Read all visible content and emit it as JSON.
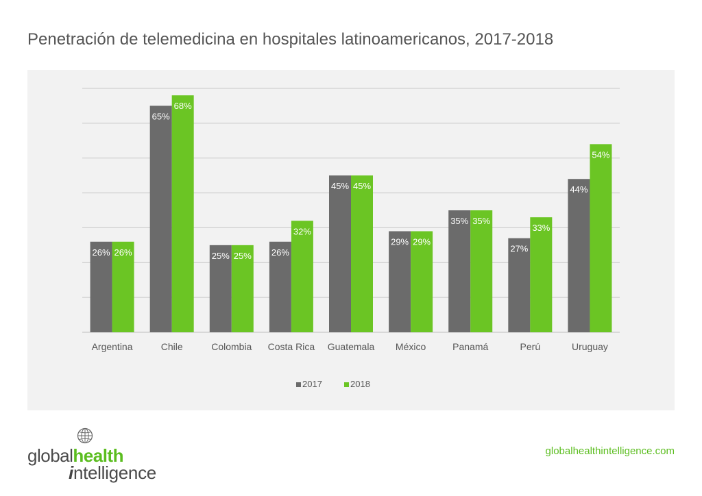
{
  "chart_data": {
    "type": "bar",
    "title": "Penetración de telemedicina en hospitales latinoamericanos, 2017-2018",
    "categories": [
      "Argentina",
      "Chile",
      "Colombia",
      "Costa Rica",
      "Guatemala",
      "México",
      "Panamá",
      "Perú",
      "Uruguay"
    ],
    "series": [
      {
        "name": "2017",
        "values": [
          26,
          65,
          25,
          26,
          45,
          29,
          35,
          27,
          44
        ],
        "labels": [
          "26%",
          "65%",
          "25%",
          "26%",
          "45%",
          "29%",
          "35%",
          "27%",
          "44%"
        ],
        "color": "#6b6b6b"
      },
      {
        "name": "2018",
        "values": [
          26,
          68,
          25,
          32,
          45,
          29,
          35,
          33,
          54
        ],
        "labels": [
          "26%",
          "68%",
          "25%",
          "32%",
          "45%",
          "29%",
          "35%",
          "33%",
          "54%"
        ],
        "color": "#6bc524"
      }
    ],
    "ylim": [
      0,
      70
    ],
    "y_gridline_step": 10,
    "y_tick_labels_shown": false,
    "grid": true,
    "legend_position": "bottom-center",
    "background_color": "#f2f2f2",
    "gridline_color": "#c8c8c8"
  },
  "footer": {
    "brand_light": "global",
    "brand_bold": "health",
    "brand_i": "i",
    "brand_rest": "ntelligence",
    "logo_icon": "globe-icon",
    "website": "globalhealthintelligence.com",
    "accent_color": "#5bbd1f"
  }
}
